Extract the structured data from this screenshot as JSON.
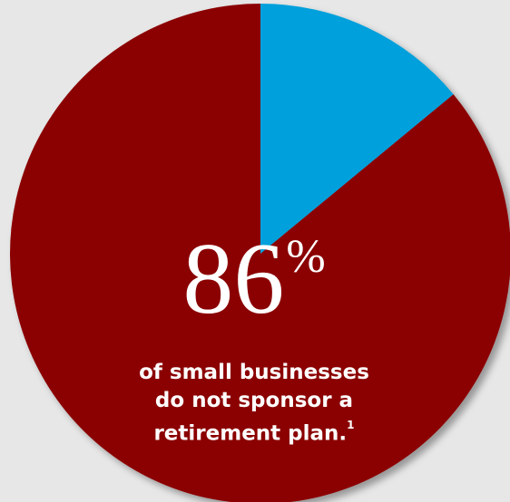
{
  "chart_data": {
    "type": "pie",
    "slices": [
      {
        "label": "do not sponsor a retirement plan",
        "value": 86,
        "color": "#8b0000"
      },
      {
        "label": "sponsor a retirement plan",
        "value": 14,
        "color": "#00a0dc"
      }
    ],
    "headline_value": "86",
    "headline_unit": "%",
    "caption_lines": [
      "of small businesses",
      "do not sponsor a",
      "retirement plan."
    ],
    "footnote_marker": "1"
  },
  "colors": {
    "background": "#e7e7e7",
    "pie_main": "#8b0000",
    "pie_accent": "#00a0dc",
    "text": "#ffffff"
  }
}
